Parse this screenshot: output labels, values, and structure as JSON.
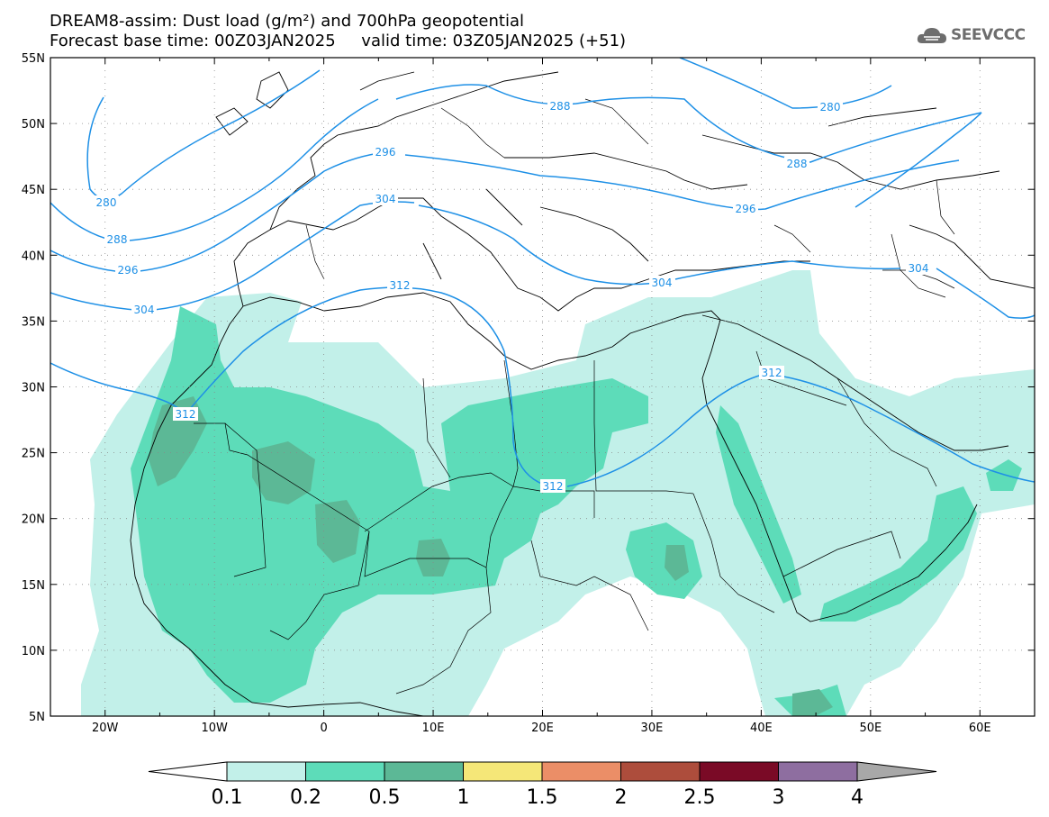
{
  "header": {
    "title_line1": "DREAM8-assim: Dust load (g/m²) and 700hPa geopotential",
    "title_line2": "Forecast base time: 00Z03JAN2025     valid time: 03Z05JAN2025 (+51)",
    "logo_text": "SEEVCCC"
  },
  "map": {
    "lon_labels": [
      "20W",
      "10W",
      "0",
      "10E",
      "20E",
      "30E",
      "40E",
      "50E",
      "60E"
    ],
    "lat_labels": [
      "55N",
      "50N",
      "45N",
      "40N",
      "35N",
      "30N",
      "25N",
      "20N",
      "15N",
      "10N",
      "5N"
    ]
  },
  "contours": [
    {
      "label": "280"
    },
    {
      "label": "280"
    },
    {
      "label": "288"
    },
    {
      "label": "288"
    },
    {
      "label": "288"
    },
    {
      "label": "296"
    },
    {
      "label": "296"
    },
    {
      "label": "296"
    },
    {
      "label": "304"
    },
    {
      "label": "304"
    },
    {
      "label": "304"
    },
    {
      "label": "304"
    },
    {
      "label": "312"
    },
    {
      "label": "312"
    },
    {
      "label": "312"
    },
    {
      "label": "312"
    }
  ],
  "colorbar": {
    "colors": [
      "#c2f0e9",
      "#5ddcb9",
      "#5cb896",
      "#f5e778",
      "#eb8e67",
      "#ad4d3c",
      "#7a0a26",
      "#8e6ea0"
    ],
    "under_color": "#ffffff",
    "over_color": "#a8a8a8",
    "tick_labels": [
      "0.1",
      "0.2",
      "0.5",
      "1",
      "1.5",
      "2",
      "2.5",
      "3",
      "4"
    ]
  },
  "contour_color": "#1e90e6"
}
